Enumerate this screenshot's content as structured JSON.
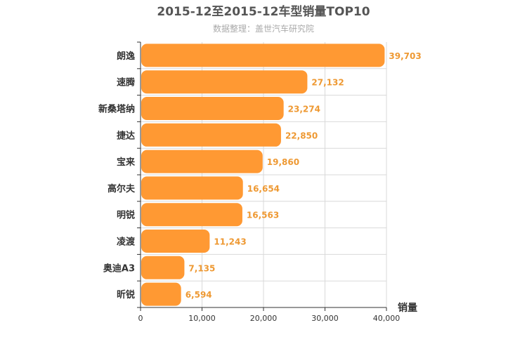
{
  "chart_data": {
    "type": "bar",
    "orientation": "horizontal",
    "title": "2015-12至2015-12车型销量TOP10",
    "subtitle": "数据整理：盖世汽车研究院",
    "xlabel": "销量",
    "ylabel": "",
    "xlim": [
      0,
      40000
    ],
    "ticks": [
      "0",
      "10,000",
      "20,000",
      "30,000",
      "40,000"
    ],
    "grid": true,
    "categories": [
      "朗逸",
      "速腾",
      "新桑塔纳",
      "捷达",
      "宝来",
      "高尔夫",
      "明锐",
      "凌渡",
      "奥迪A3",
      "昕锐"
    ],
    "values": [
      39703,
      27132,
      23274,
      22850,
      19860,
      16654,
      16563,
      11243,
      7135,
      6594
    ],
    "value_labels": [
      "39,703",
      "27,132",
      "23,274",
      "22,850",
      "19,860",
      "16,654",
      "16,563",
      "11,243",
      "7,135",
      "6,594"
    ],
    "colors": {
      "bar": "#ff9933",
      "value_label": "#ee9933",
      "grid": "#d9d9d9",
      "axis": "#333333"
    }
  }
}
